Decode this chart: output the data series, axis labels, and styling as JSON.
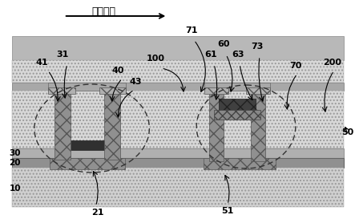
{
  "fig_width": 4.43,
  "fig_height": 2.73,
  "dpi": 100,
  "bg_color": "#ffffff",
  "layers": {
    "gray_top": "#b8b8b8",
    "stipple_mid": "#d4d4d4",
    "white_band": "#f0f0f0",
    "dark_band": "#989898",
    "stipple_low": "#d4d4d4",
    "dark_gate": "#888888",
    "crosshatch_col": "#909090",
    "black_semi": "#303030",
    "dark_cap": "#555555"
  },
  "direction_label": "第一方向",
  "label_nums": [
    "10",
    "20",
    "21",
    "30",
    "31",
    "40",
    "41",
    "43",
    "50",
    "51",
    "60",
    "61",
    "63",
    "70",
    "71",
    "73",
    "100",
    "200"
  ]
}
